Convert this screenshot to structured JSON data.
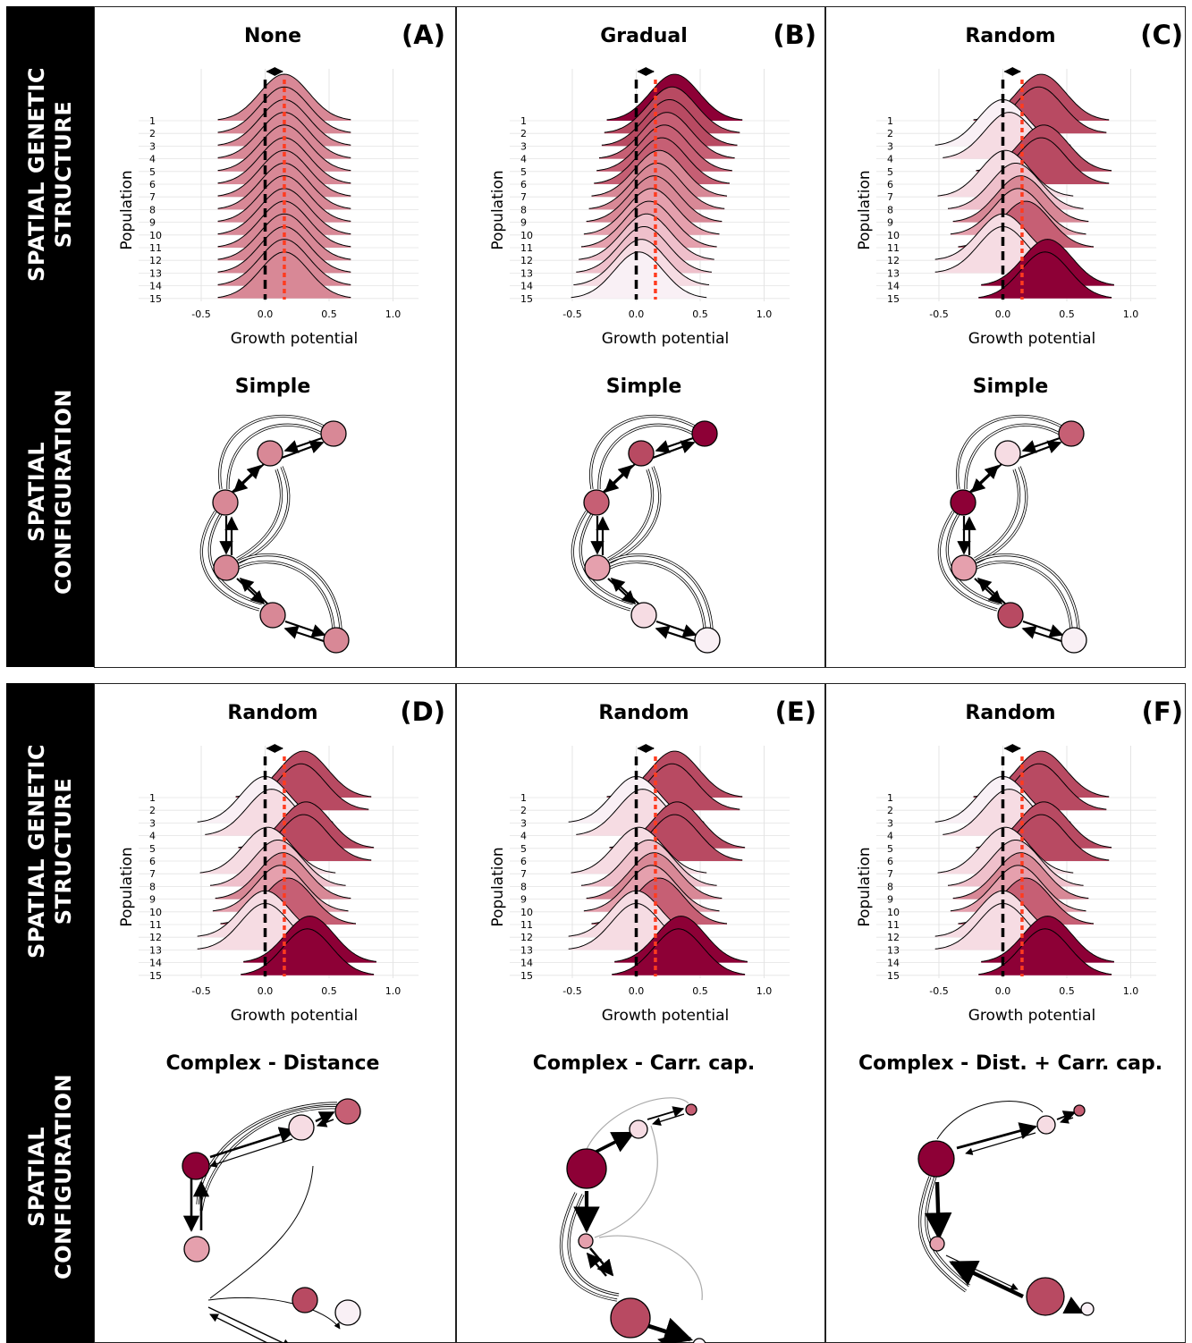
{
  "side_labels": {
    "genetic": [
      "SPATIAL GENETIC",
      "STRUCTURE"
    ],
    "config": [
      "SPATIAL",
      "CONFIGURATION"
    ]
  },
  "colors": [
    "#f9f0f5",
    "#f6dce3",
    "#efc0cb",
    "#e5a0ad",
    "#d88896",
    "#c65f74",
    "#b84a62",
    "#8d0036"
  ],
  "axis": {
    "x_label": "Growth potential",
    "y_label": "Population",
    "x_ticks": [
      "-0.5",
      "0.0",
      "0.5",
      "1.0"
    ],
    "populations": [
      "1",
      "2",
      "3",
      "4",
      "5",
      "6",
      "7",
      "8",
      "9",
      "10",
      "11",
      "12",
      "13",
      "14",
      "15"
    ]
  },
  "panels": [
    {
      "tag": "(A)",
      "structure_title": "None",
      "config_title": "Simple",
      "network": "simple",
      "ridges": [
        {
          "mean": 0.15,
          "color": 4
        },
        {
          "mean": 0.15,
          "color": 4
        },
        {
          "mean": 0.15,
          "color": 4
        },
        {
          "mean": 0.15,
          "color": 4
        },
        {
          "mean": 0.15,
          "color": 4
        },
        {
          "mean": 0.15,
          "color": 4
        },
        {
          "mean": 0.15,
          "color": 4
        },
        {
          "mean": 0.15,
          "color": 4
        },
        {
          "mean": 0.15,
          "color": 4
        },
        {
          "mean": 0.15,
          "color": 4
        },
        {
          "mean": 0.15,
          "color": 4
        },
        {
          "mean": 0.15,
          "color": 4
        },
        {
          "mean": 0.15,
          "color": 4
        },
        {
          "mean": 0.15,
          "color": 4
        },
        {
          "mean": 0.15,
          "color": 4
        }
      ],
      "node_colors": [
        4,
        4,
        4,
        4,
        4,
        4
      ]
    },
    {
      "tag": "(B)",
      "structure_title": "Gradual",
      "config_title": "Simple",
      "network": "simple",
      "ridges": [
        {
          "mean": 0.3,
          "color": 7
        },
        {
          "mean": 0.28,
          "color": 6
        },
        {
          "mean": 0.26,
          "color": 6
        },
        {
          "mean": 0.24,
          "color": 5
        },
        {
          "mean": 0.22,
          "color": 5
        },
        {
          "mean": 0.2,
          "color": 5
        },
        {
          "mean": 0.18,
          "color": 4
        },
        {
          "mean": 0.16,
          "color": 4
        },
        {
          "mean": 0.14,
          "color": 4
        },
        {
          "mean": 0.12,
          "color": 3
        },
        {
          "mean": 0.1,
          "color": 3
        },
        {
          "mean": 0.08,
          "color": 2
        },
        {
          "mean": 0.06,
          "color": 2
        },
        {
          "mean": 0.04,
          "color": 1
        },
        {
          "mean": 0.02,
          "color": 0
        }
      ],
      "node_colors": [
        7,
        6,
        5,
        3,
        1,
        0
      ]
    },
    {
      "tag": "(C)",
      "structure_title": "Random",
      "config_title": "Simple",
      "network": "simple",
      "ridges": [
        {
          "mean": 0.3,
          "color": 6
        },
        {
          "mean": 0.28,
          "color": 6
        },
        {
          "mean": 0.0,
          "color": 0
        },
        {
          "mean": 0.05,
          "color": 1
        },
        {
          "mean": 0.32,
          "color": 6
        },
        {
          "mean": 0.3,
          "color": 6
        },
        {
          "mean": 0.02,
          "color": 1
        },
        {
          "mean": 0.1,
          "color": 2
        },
        {
          "mean": 0.14,
          "color": 4
        },
        {
          "mean": 0.12,
          "color": 3
        },
        {
          "mean": 0.18,
          "color": 5
        },
        {
          "mean": 0.0,
          "color": 1
        },
        {
          "mean": 0.0,
          "color": 1
        },
        {
          "mean": 0.35,
          "color": 7
        },
        {
          "mean": 0.33,
          "color": 7
        }
      ],
      "node_colors": [
        5,
        1,
        7,
        3,
        6,
        0
      ]
    },
    {
      "tag": "(D)",
      "structure_title": "Random",
      "config_title": "Complex - Distance",
      "network": "distance",
      "ridges": [
        {
          "mean": 0.3,
          "color": 6
        },
        {
          "mean": 0.28,
          "color": 6
        },
        {
          "mean": 0.0,
          "color": 0
        },
        {
          "mean": 0.05,
          "color": 1
        },
        {
          "mean": 0.32,
          "color": 6
        },
        {
          "mean": 0.3,
          "color": 6
        },
        {
          "mean": 0.02,
          "color": 1
        },
        {
          "mean": 0.1,
          "color": 2
        },
        {
          "mean": 0.14,
          "color": 4
        },
        {
          "mean": 0.12,
          "color": 3
        },
        {
          "mean": 0.18,
          "color": 5
        },
        {
          "mean": 0.0,
          "color": 1
        },
        {
          "mean": 0.0,
          "color": 1
        },
        {
          "mean": 0.35,
          "color": 7
        },
        {
          "mean": 0.33,
          "color": 7
        }
      ],
      "node_colors": [
        5,
        1,
        7,
        3,
        6,
        0
      ]
    },
    {
      "tag": "(E)",
      "structure_title": "Random",
      "config_title": "Complex - Carr. cap.",
      "network": "carrcap",
      "ridges": [
        {
          "mean": 0.3,
          "color": 6
        },
        {
          "mean": 0.28,
          "color": 6
        },
        {
          "mean": 0.0,
          "color": 0
        },
        {
          "mean": 0.05,
          "color": 1
        },
        {
          "mean": 0.32,
          "color": 6
        },
        {
          "mean": 0.3,
          "color": 6
        },
        {
          "mean": 0.02,
          "color": 1
        },
        {
          "mean": 0.1,
          "color": 2
        },
        {
          "mean": 0.14,
          "color": 4
        },
        {
          "mean": 0.12,
          "color": 3
        },
        {
          "mean": 0.18,
          "color": 5
        },
        {
          "mean": 0.0,
          "color": 1
        },
        {
          "mean": 0.0,
          "color": 1
        },
        {
          "mean": 0.35,
          "color": 7
        },
        {
          "mean": 0.33,
          "color": 7
        }
      ],
      "node_colors": [
        5,
        1,
        7,
        3,
        6,
        0
      ]
    },
    {
      "tag": "(F)",
      "structure_title": "Random",
      "config_title": "Complex - Dist. + Carr. cap.",
      "network": "both",
      "ridges": [
        {
          "mean": 0.3,
          "color": 6
        },
        {
          "mean": 0.28,
          "color": 6
        },
        {
          "mean": 0.0,
          "color": 0
        },
        {
          "mean": 0.05,
          "color": 1
        },
        {
          "mean": 0.32,
          "color": 6
        },
        {
          "mean": 0.3,
          "color": 6
        },
        {
          "mean": 0.02,
          "color": 1
        },
        {
          "mean": 0.1,
          "color": 2
        },
        {
          "mean": 0.14,
          "color": 4
        },
        {
          "mean": 0.12,
          "color": 3
        },
        {
          "mean": 0.18,
          "color": 5
        },
        {
          "mean": 0.0,
          "color": 1
        },
        {
          "mean": 0.0,
          "color": 1
        },
        {
          "mean": 0.35,
          "color": 7
        },
        {
          "mean": 0.33,
          "color": 7
        }
      ],
      "node_colors": [
        5,
        1,
        7,
        3,
        6,
        0
      ]
    }
  ]
}
